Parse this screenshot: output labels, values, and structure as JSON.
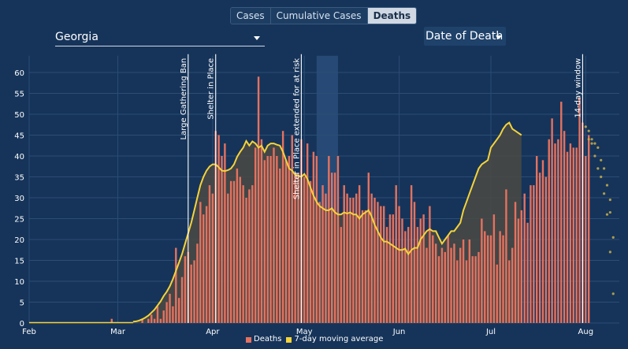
{
  "tabs": [
    {
      "label": "Cases",
      "active": false
    },
    {
      "label": "Cumulative Cases",
      "active": false
    },
    {
      "label": "Deaths",
      "active": true
    }
  ],
  "region_select": {
    "value": "Georgia"
  },
  "date_select": {
    "value": "Date of Death"
  },
  "colors": {
    "bar": "#e4725f",
    "avg_line": "#f5d33a",
    "background": "#16345a",
    "gap_fill": "#4a4a44",
    "projection": "#c9b04a"
  },
  "chart_data": {
    "type": "bar",
    "x_start": "2020-02-01",
    "x_end": "2020-08-12",
    "xlim": [
      "2020-02-01",
      "2020-08-12"
    ],
    "ylim": [
      0,
      64
    ],
    "yticks": [
      0,
      5,
      10,
      15,
      20,
      25,
      30,
      35,
      40,
      45,
      50,
      55,
      60
    ],
    "xticks": [
      {
        "date": "2020-02-01",
        "label": "Feb"
      },
      {
        "date": "2020-03-01",
        "label": "Mar"
      },
      {
        "date": "2020-04-01",
        "label": "Apr"
      },
      {
        "date": "2020-05-01",
        "label": "May"
      },
      {
        "date": "2020-06-01",
        "label": "Jun"
      },
      {
        "date": "2020-07-01",
        "label": "Jul"
      },
      {
        "date": "2020-08-01",
        "label": "Aug"
      }
    ],
    "bars_start_date": "2020-02-28",
    "deaths": [
      1,
      0,
      0,
      0,
      0,
      0,
      0,
      0,
      0,
      0,
      1,
      0,
      1,
      2,
      1,
      4,
      1,
      3,
      5,
      7,
      4,
      18,
      6,
      11,
      16,
      17,
      14,
      15,
      19,
      29,
      26,
      28,
      33,
      31,
      46,
      45,
      40,
      43,
      31,
      34,
      34,
      37,
      35,
      33,
      30,
      32,
      33,
      42,
      59,
      44,
      39,
      40,
      40,
      42,
      40,
      37,
      46,
      39,
      40,
      45,
      36,
      36,
      44,
      35,
      43,
      34,
      41,
      40,
      29,
      33,
      31,
      40,
      36,
      36,
      40,
      23,
      33,
      31,
      30,
      30,
      31,
      33,
      27,
      27,
      36,
      31,
      30,
      29,
      28,
      28,
      23,
      26,
      26,
      33,
      28,
      25,
      22,
      23,
      33,
      29,
      23,
      25,
      26,
      18,
      28,
      21,
      19,
      16,
      18,
      17,
      21,
      18,
      19,
      15,
      18,
      20,
      15,
      20,
      16,
      16,
      17,
      25,
      22,
      21,
      21,
      26,
      14,
      22,
      21,
      32,
      15,
      18,
      29,
      25,
      27,
      31,
      24,
      33,
      33,
      40,
      36,
      39,
      35,
      44,
      49,
      43,
      44,
      53,
      46,
      41,
      43,
      42,
      42,
      54,
      48,
      40,
      45
    ],
    "avg_start_date": "2020-03-06",
    "avg": [
      0.3,
      0.4,
      0.6,
      0.9,
      1.3,
      1.8,
      2.5,
      3.2,
      4.2,
      5.2,
      6.5,
      7.5,
      8.8,
      10.5,
      12.5,
      14.5,
      16.5,
      19.0,
      21.5,
      24.0,
      27.0,
      30.0,
      33.0,
      35.0,
      36.5,
      37.5,
      38.0,
      38.0,
      37.3,
      36.5,
      36.4,
      36.6,
      37.0,
      38.0,
      39.8,
      41.0,
      42.0,
      43.6,
      42.5,
      43.5,
      43.0,
      42.0,
      42.5,
      41.0,
      42.5,
      43.0,
      43.0,
      42.7,
      42.5,
      41.0,
      39.0,
      37.0,
      36.5,
      35.5,
      35.3,
      35.0,
      35.7,
      34.5,
      32.5,
      30.5,
      29.0,
      28.0,
      27.5,
      27.0,
      27.0,
      27.5,
      26.5,
      26.0,
      26.0,
      26.5,
      26.2,
      26.5,
      26.0,
      26.0,
      25.0,
      26.0,
      26.5,
      27.0,
      25.5,
      23.5,
      22.0,
      20.5,
      19.5,
      19.5,
      19.0,
      18.5,
      18.0,
      17.5,
      17.5,
      17.8,
      16.5,
      17.5,
      18.0,
      18.0,
      20.0,
      21.0,
      22.0,
      22.5,
      22.0,
      22.0,
      20.5,
      19.0,
      20.0,
      21.0,
      22.0,
      22.0,
      23.0,
      24.0,
      27.0,
      29.0,
      31.0,
      33.0,
      35.0,
      37.0,
      38.0,
      38.5,
      39.0,
      42.0,
      43.0,
      44.0,
      45.0,
      46.5,
      47.5,
      48.0,
      46.5,
      46.0,
      45.5,
      45.0
    ],
    "projection_start_date": "2020-08-01",
    "projection": [
      {
        "date": "2020-08-01",
        "values": [
          47.0
        ]
      },
      {
        "date": "2020-08-02",
        "values": [
          44.0,
          46.0
        ]
      },
      {
        "date": "2020-08-03",
        "values": [
          43.0,
          44.0
        ]
      },
      {
        "date": "2020-08-04",
        "values": [
          40.0,
          43.0
        ]
      },
      {
        "date": "2020-08-05",
        "values": [
          37.0,
          42.0
        ]
      },
      {
        "date": "2020-08-06",
        "values": [
          35.0,
          39.0
        ]
      },
      {
        "date": "2020-08-07",
        "values": [
          31.0,
          37.0
        ]
      },
      {
        "date": "2020-08-08",
        "values": [
          26.0,
          33.0
        ]
      },
      {
        "date": "2020-08-09",
        "values": [
          17.0,
          29.5,
          26.5
        ]
      },
      {
        "date": "2020-08-10",
        "values": [
          7.0,
          20.5
        ]
      }
    ],
    "events": [
      {
        "date": "2020-03-24",
        "label": "Large Gathering Ban"
      },
      {
        "date": "2020-04-02",
        "label": "Shelter in Place"
      },
      {
        "date": "2020-04-30",
        "label": "Shelter in Place extended for at risk"
      },
      {
        "date": "2020-07-31",
        "label": "14-day window"
      }
    ],
    "highlight_range": [
      "2020-05-05",
      "2020-05-12"
    ],
    "legend": [
      {
        "label": "Deaths",
        "color": "#e4725f"
      },
      {
        "label": "7-day moving average",
        "color": "#f5d33a"
      }
    ]
  }
}
